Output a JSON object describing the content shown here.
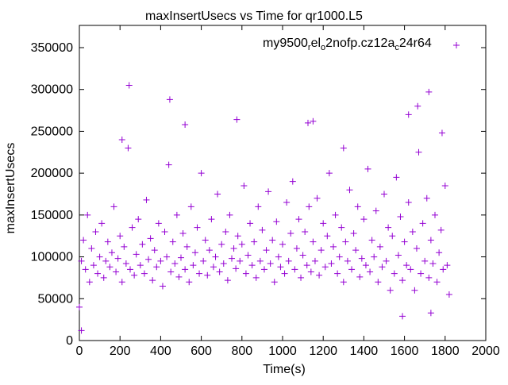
{
  "chart_data": {
    "type": "scatter",
    "title": "maxInsertUsecs vs Time for qr1000.L5",
    "xlabel": "Time(s)",
    "ylabel": "maxInsertUsecs",
    "xlim": [
      0,
      2000
    ],
    "ylim": [
      0,
      350000
    ],
    "xticks": [
      "0",
      "200",
      "400",
      "600",
      "800",
      "1000",
      "1200",
      "1400",
      "1600",
      "1800",
      "2000"
    ],
    "yticks": [
      "0",
      "50000",
      "100000",
      "150000",
      "200000",
      "250000",
      "300000",
      "350000"
    ],
    "grid": false,
    "legend_position": "top-right",
    "series": [
      {
        "name": "my9500_el_o2nofp.cz12a_c24r64",
        "legend_parts": [
          "my9500",
          "r",
          "el",
          "o",
          "2nofp.cz12a",
          "c",
          "24r64"
        ],
        "color": "#9400d3",
        "marker": "+",
        "x_start": 0,
        "x_step": 10,
        "y": [
          40000,
          95000,
          120000,
          85000,
          150000,
          70000,
          110000,
          90000,
          130000,
          80000,
          100000,
          140000,
          75000,
          95000,
          118000,
          88000,
          105000,
          160000,
          82000,
          98000,
          125000,
          70000,
          112000,
          92000,
          230000,
          85000,
          135000,
          78000,
          103000,
          145000,
          90000,
          115000,
          80000,
          168000,
          97000,
          122000,
          72000,
          108000,
          88000,
          140000,
          95000,
          65000,
          130000,
          100000,
          210000,
          82000,
          118000,
          92000,
          150000,
          76000,
          99000,
          128000,
          85000,
          112000,
          70000,
          160000,
          90000,
          105000,
          135000,
          80000,
          200000,
          95000,
          120000,
          78000,
          108000,
          145000,
          88000,
          100000,
          175000,
          82000,
          115000,
          92000,
          130000,
          72000,
          150000,
          98000,
          110000,
          86000,
          125000,
          95000,
          115000,
          185000,
          80000,
          102000,
          140000,
          90000,
          118000,
          75000,
          160000,
          95000,
          132000,
          85000,
          108000,
          178000,
          92000,
          120000,
          70000,
          142000,
          100000,
          88000,
          115000,
          80000,
          165000,
          95000,
          128000,
          190000,
          85000,
          110000,
          145000,
          75000,
          102000,
          130000,
          90000,
          160000,
          82000,
          118000,
          95000,
          170000,
          78000,
          108000,
          140000,
          88000,
          125000,
          200000,
          92000,
          112000,
          150000,
          80000,
          100000,
          135000,
          70000,
          118000,
          95000,
          180000,
          85000,
          128000,
          108000,
          160000,
          76000,
          98000,
          145000,
          90000,
          205000,
          82000,
          120000,
          100000,
          155000,
          70000,
          112000,
          88000,
          175000,
          95000,
          135000,
          60000,
          125000,
          80000,
          195000,
          102000,
          148000,
          72000,
          118000,
          90000,
          165000,
          85000,
          130000,
          60000,
          110000,
          225000,
          80000,
          140000,
          95000,
          170000,
          75000,
          120000,
          92000,
          150000,
          70000,
          105000,
          132000,
          85000,
          185000,
          90000,
          55000
        ],
        "extra_points": [
          [
            10,
            12000
          ],
          [
            245,
            305000
          ],
          [
            445,
            288000
          ],
          [
            520,
            258000
          ],
          [
            775,
            264000
          ],
          [
            1125,
            260000
          ],
          [
            1150,
            262000
          ],
          [
            1590,
            29000
          ],
          [
            1620,
            270000
          ],
          [
            1665,
            280000
          ],
          [
            1720,
            297000
          ],
          [
            1730,
            33000
          ],
          [
            1785,
            248000
          ],
          [
            210,
            240000
          ],
          [
            1300,
            230000
          ]
        ]
      }
    ]
  }
}
